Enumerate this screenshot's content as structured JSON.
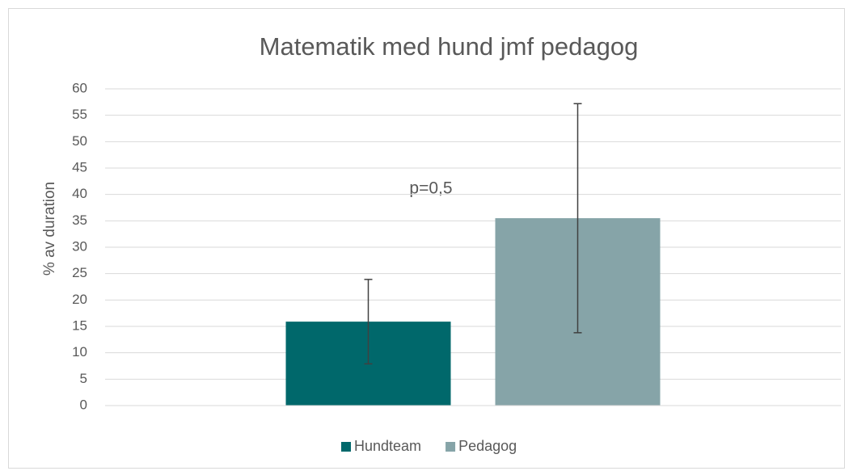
{
  "chart_data": {
    "type": "bar",
    "title": "Matematik med hund jmf pedagog",
    "y_label": "% av duration",
    "annotation": "p=0,5",
    "categories": [
      null
    ],
    "series": [
      {
        "name": "Hundteam",
        "color": "#00686b",
        "values": [
          15.9
        ],
        "errors": [
          8.0
        ]
      },
      {
        "name": "Pedagog",
        "color": "#86a4a8",
        "values": [
          35.5
        ],
        "errors": [
          21.7
        ]
      }
    ],
    "ylim": [
      0,
      60
    ],
    "yticks": [
      0,
      5,
      10,
      15,
      20,
      25,
      30,
      35,
      40,
      45,
      50,
      55,
      60
    ],
    "grid": true,
    "legend": "bottom"
  }
}
